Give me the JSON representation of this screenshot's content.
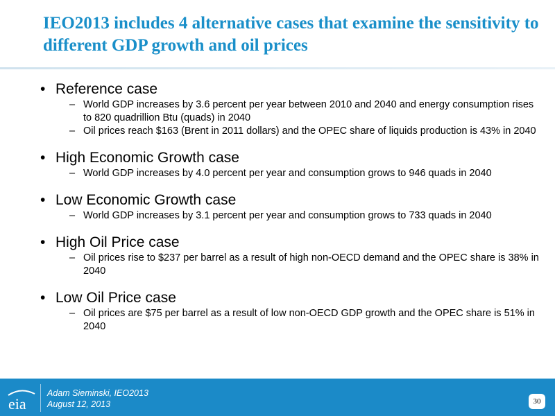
{
  "header": {
    "title": "IEO2013 includes 4 alternative cases that examine the sensitivity to different GDP growth and oil prices"
  },
  "cases": [
    {
      "heading": "Reference case",
      "points": [
        "World GDP increases by 3.6 percent per year between 2010 and 2040 and energy consumption rises to 820 quadrillion Btu (quads) in 2040",
        "Oil prices reach $163 (Brent in 2011 dollars) and the OPEC share of liquids production is 43% in 2040"
      ]
    },
    {
      "heading": "High Economic Growth case",
      "points": [
        "World GDP increases by 4.0 percent per year and consumption grows to 946 quads in 2040"
      ]
    },
    {
      "heading": "Low Economic Growth case",
      "points": [
        "World GDP increases by 3.1 percent per year and consumption grows to 733 quads in 2040"
      ]
    },
    {
      "heading": "High Oil Price case",
      "points": [
        "Oil prices rise to $237 per barrel as a result of high non-OECD demand and the OPEC share is 38% in 2040"
      ]
    },
    {
      "heading": "Low Oil Price case",
      "points": [
        "Oil prices are $75 per barrel as a result of low non-OECD GDP growth and the OPEC share is 51% in 2040"
      ]
    }
  ],
  "footer": {
    "logo": "eia",
    "author": "Adam Sieminski, IEO2013",
    "date": "August 12, 2013",
    "page": "30"
  }
}
